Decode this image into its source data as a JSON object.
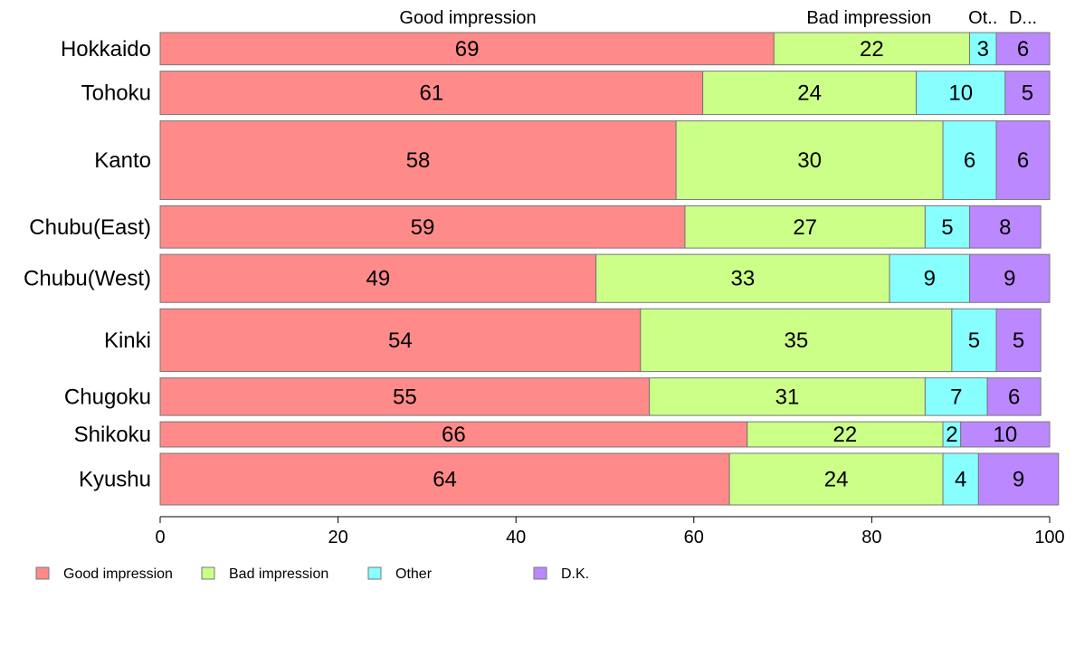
{
  "chart_data": {
    "type": "bar",
    "orientation": "horizontal",
    "stacked": true,
    "title": "",
    "xlabel": "",
    "ylabel": "",
    "xlim": [
      0,
      100
    ],
    "x_ticks": [
      0,
      20,
      40,
      60,
      80,
      100
    ],
    "grid": false,
    "legend_position": "bottom-left",
    "categories": [
      "Hokkaido",
      "Tohoku",
      "Kanto",
      "Chubu(East)",
      "Chubu(West)",
      "Kinki",
      "Chugoku",
      "Shikoku",
      "Kyushu"
    ],
    "bar_weights": [
      0.55,
      0.74,
      1.34,
      0.72,
      0.82,
      1.07,
      0.64,
      0.43,
      0.88
    ],
    "column_headers": [
      "Good impression",
      "Bad impression",
      "Ot..",
      "D..."
    ],
    "series": [
      {
        "name": "Good impression",
        "color": "#ff8a8a",
        "values": [
          69,
          61,
          58,
          59,
          49,
          54,
          55,
          66,
          64
        ]
      },
      {
        "name": "Bad impression",
        "color": "#ccff88",
        "values": [
          22,
          24,
          30,
          27,
          33,
          35,
          31,
          22,
          24
        ]
      },
      {
        "name": "Other",
        "color": "#88ffff",
        "values": [
          3,
          10,
          6,
          5,
          9,
          5,
          7,
          2,
          4
        ]
      },
      {
        "name": "D.K.",
        "color": "#bb88ff",
        "values": [
          6,
          5,
          6,
          8,
          9,
          5,
          6,
          10,
          9
        ]
      }
    ]
  }
}
